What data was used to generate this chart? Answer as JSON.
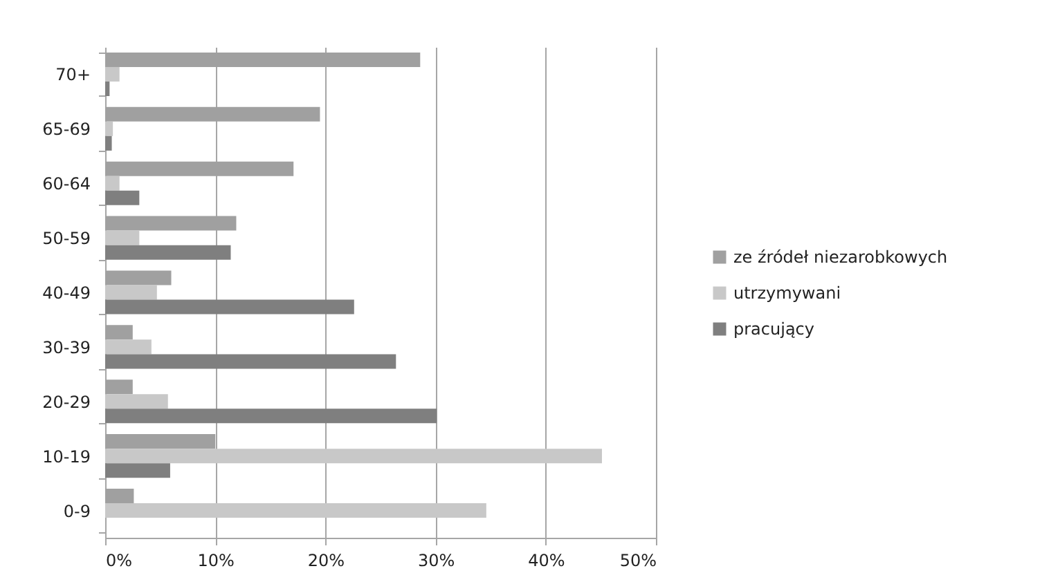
{
  "chart_data": {
    "type": "bar",
    "orientation": "horizontal",
    "categories": [
      "70+",
      "65-69",
      "60-64",
      "50-59",
      "40-49",
      "30-39",
      "20-29",
      "10-19",
      "0-9"
    ],
    "series": [
      {
        "name": "ze źródeł niezarobkowych",
        "color": "#a0a0a0",
        "values": [
          28.6,
          19.5,
          17.1,
          11.9,
          6.0,
          2.5,
          2.5,
          10.0,
          2.6
        ]
      },
      {
        "name": "utrzymywani",
        "color": "#c8c8c8",
        "values": [
          1.3,
          0.7,
          1.3,
          3.1,
          4.7,
          4.2,
          5.7,
          45.1,
          34.6
        ]
      },
      {
        "name": "pracujący",
        "color": "#7f7f7f",
        "values": [
          0.4,
          0.6,
          3.1,
          11.4,
          22.6,
          26.4,
          30.1,
          5.9,
          null
        ]
      }
    ],
    "xlim": [
      0,
      50
    ],
    "xticks": [
      {
        "value": 0,
        "label": "0%"
      },
      {
        "value": 10,
        "label": "10%"
      },
      {
        "value": 20,
        "label": "20%"
      },
      {
        "value": 30,
        "label": "30%"
      },
      {
        "value": 40,
        "label": "40%"
      },
      {
        "value": 50,
        "label": "50%"
      }
    ],
    "grid": "x",
    "legend": "right"
  }
}
